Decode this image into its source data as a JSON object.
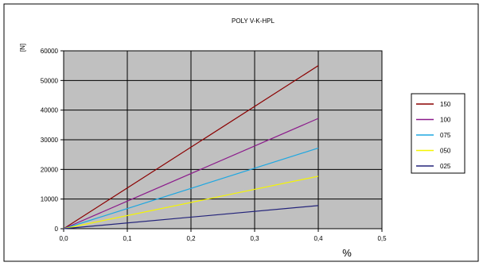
{
  "chart_data": {
    "type": "line",
    "title": "POLY V-K-HPL",
    "xlabel": "%",
    "ylabel": "[N]",
    "xlim": [
      0,
      0.5
    ],
    "ylim": [
      0,
      60000
    ],
    "x_ticks": [
      "0,0",
      "0,1",
      "0,2",
      "0,3",
      "0,4",
      "0,5"
    ],
    "y_ticks": [
      "0",
      "10000",
      "20000",
      "30000",
      "40000",
      "50000",
      "60000"
    ],
    "x_tick_values": [
      0,
      0.1,
      0.2,
      0.3,
      0.4,
      0.5
    ],
    "y_tick_values": [
      0,
      10000,
      20000,
      30000,
      40000,
      50000,
      60000
    ],
    "grid": true,
    "plot_background": "#c0c0c0",
    "legend_position": "right",
    "series": [
      {
        "name": "150",
        "color": "#8b0000",
        "x": [
          0,
          0.4
        ],
        "y": [
          0,
          55000
        ]
      },
      {
        "name": "100",
        "color": "#8b1a8b",
        "x": [
          0,
          0.4
        ],
        "y": [
          0,
          37200
        ]
      },
      {
        "name": "075",
        "color": "#1ea7e1",
        "x": [
          0,
          0.4
        ],
        "y": [
          0,
          27200
        ]
      },
      {
        "name": "050",
        "color": "#f5f500",
        "x": [
          0,
          0.4
        ],
        "y": [
          0,
          17700
        ]
      },
      {
        "name": "025",
        "color": "#23237a",
        "x": [
          0,
          0.4
        ],
        "y": [
          0,
          7800
        ]
      }
    ]
  }
}
